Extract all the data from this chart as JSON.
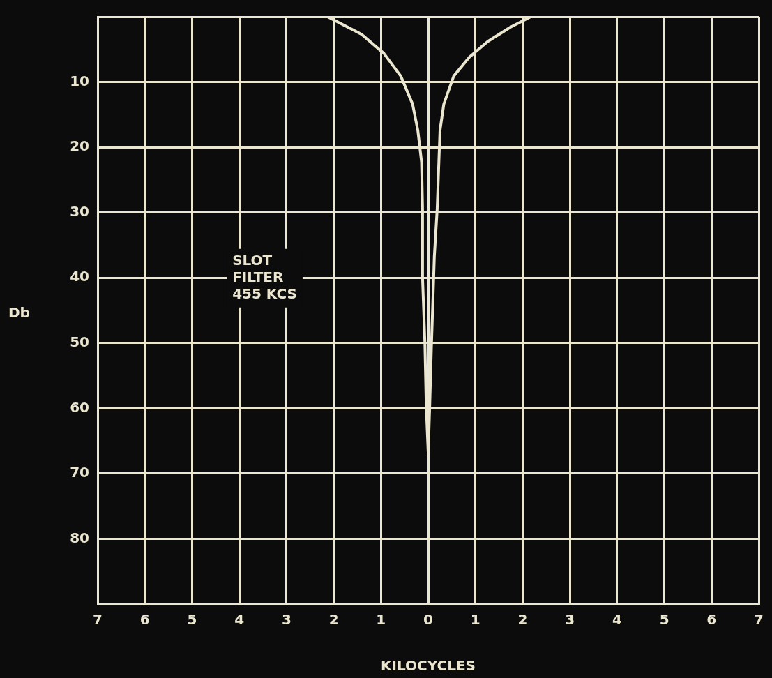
{
  "chart_data": {
    "type": "line",
    "xlabel": "KILOCYCLES",
    "ylabel": "Db",
    "annotations": [
      "SLOT\nFILTER\n455 KCS"
    ],
    "xlim": [
      -7,
      7
    ],
    "xticks": [
      {
        "value": -7,
        "label": "7"
      },
      {
        "value": -6,
        "label": "6"
      },
      {
        "value": -5,
        "label": "5"
      },
      {
        "value": -4,
        "label": "4"
      },
      {
        "value": -3,
        "label": "3"
      },
      {
        "value": -2,
        "label": "2"
      },
      {
        "value": -1,
        "label": "1"
      },
      0,
      1,
      2,
      3,
      4,
      5,
      6,
      7
    ],
    "ylim": [
      90,
      0
    ],
    "yticks": [
      {
        "value": 0,
        "label": null
      },
      10,
      20,
      30,
      40,
      50,
      60,
      70,
      80,
      {
        "value": 90,
        "label": null
      }
    ],
    "grid": true,
    "marker": "none",
    "line_style": "solid",
    "series": [
      {
        "color": "#ebe6cf",
        "x": [
          -2.13,
          -1.41,
          -0.94,
          -0.58,
          -0.33,
          -0.22,
          -0.14,
          -0.12,
          -0.12,
          -0.07,
          -0.04,
          0,
          0.03,
          0.07,
          0.13,
          0.19,
          0.25,
          0.33,
          0.54,
          0.87,
          1.26,
          1.74,
          2.17
        ],
        "values": [
          0,
          2.7,
          5.6,
          9.1,
          13.4,
          17.4,
          22.3,
          29.5,
          40,
          50,
          60,
          66.8,
          60,
          50,
          36.7,
          29.5,
          17.4,
          13.4,
          9.1,
          6.2,
          3.8,
          1.6,
          0
        ]
      }
    ]
  }
}
